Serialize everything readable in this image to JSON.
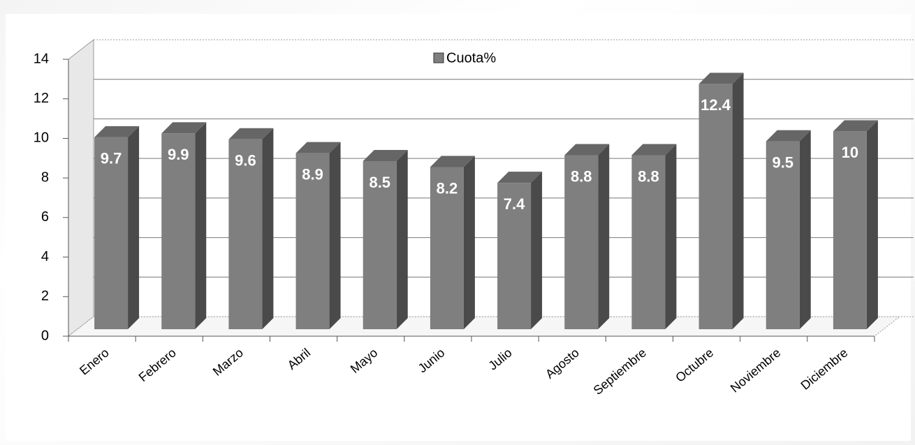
{
  "chart_data": {
    "type": "bar3d",
    "categories": [
      "Enero",
      "Febrero",
      "Marzo",
      "Abril",
      "Mayo",
      "Junio",
      "Julio",
      "Agosto",
      "Septiembre",
      "Octubre",
      "Noviembre",
      "Diciembre"
    ],
    "series": [
      {
        "name": "Cuota%",
        "color": "#7f7f7f",
        "values": [
          9.7,
          9.9,
          9.6,
          8.9,
          8.5,
          8.2,
          7.4,
          8.8,
          8.8,
          12.4,
          9.5,
          10
        ]
      }
    ],
    "ylim": [
      0,
      14
    ],
    "yticks": [
      0,
      2,
      4,
      6,
      8,
      10,
      12,
      14
    ],
    "grid": true,
    "legend": "top"
  }
}
